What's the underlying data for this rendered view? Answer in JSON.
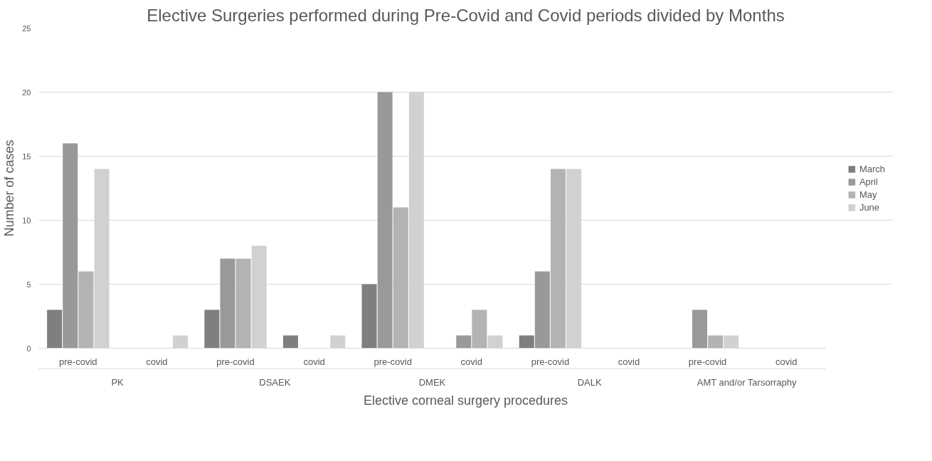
{
  "chart_data": {
    "type": "bar",
    "title": "Elective Surgeries performed during Pre-Covid and Covid periods divided by Months",
    "xlabel": "Elective corneal surgery procedures",
    "ylabel": "Number of cases",
    "categories": [
      "pre-covid",
      "covid",
      "pre-covid",
      "covid",
      "pre-covid",
      "covid",
      "pre-covid",
      "covid",
      "pre-covid",
      "covid"
    ],
    "annotations": [
      "PK",
      "DSAEK",
      "DMEK",
      "DALK",
      "AMT and/or Tarsorraphy"
    ],
    "series": [
      {
        "name": "March",
        "color": "#7f7f7f",
        "values": [
          3,
          0,
          3,
          1,
          5,
          0,
          1,
          0,
          0,
          0
        ]
      },
      {
        "name": "April",
        "color": "#999999",
        "values": [
          16,
          0,
          7,
          0,
          20,
          1,
          6,
          0,
          3,
          0
        ]
      },
      {
        "name": "May",
        "color": "#b3b3b3",
        "values": [
          6,
          0,
          7,
          0,
          11,
          3,
          14,
          0,
          1,
          0
        ]
      },
      {
        "name": "June",
        "color": "#d1d1d1",
        "values": [
          14,
          1,
          8,
          1,
          20,
          1,
          14,
          0,
          1,
          0
        ]
      }
    ],
    "ylim": [
      0,
      25
    ],
    "yticks": [
      0,
      5,
      10,
      15,
      20,
      25
    ],
    "grid": "y",
    "legend": "right"
  }
}
